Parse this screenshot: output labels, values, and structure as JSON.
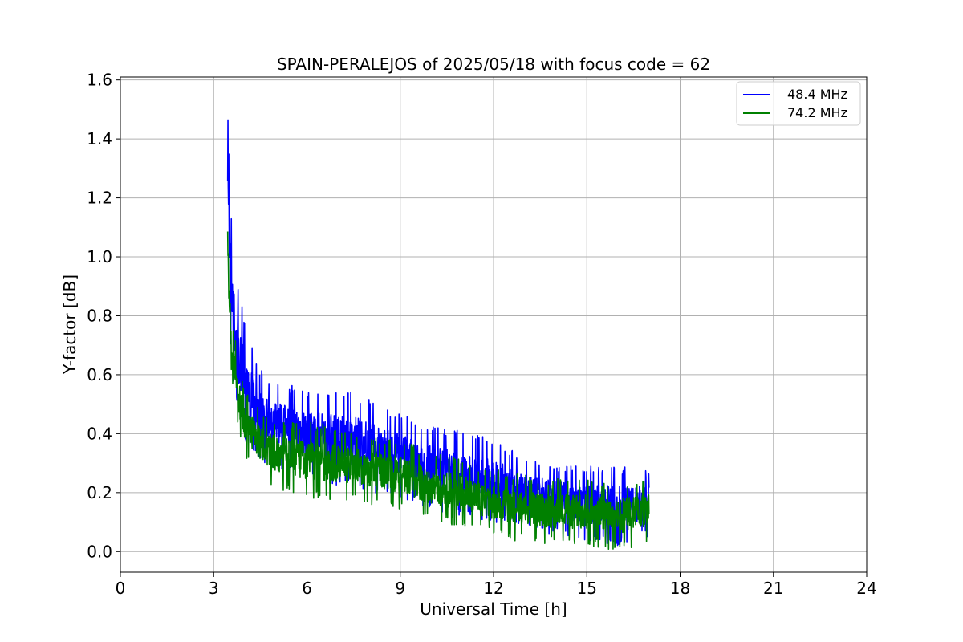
{
  "chart_data": {
    "type": "line",
    "title": "SPAIN-PERALEJOS of 2025/05/18 with focus code = 62",
    "xlabel": "Universal Time [h]",
    "ylabel": "Y-factor [dB]",
    "xlim": [
      0,
      24
    ],
    "ylim": [
      -0.07,
      1.61
    ],
    "xticks": [
      0,
      3,
      6,
      9,
      12,
      15,
      18,
      21,
      24
    ],
    "xtick_labels": [
      "0",
      "3",
      "6",
      "9",
      "12",
      "15",
      "18",
      "21",
      "24"
    ],
    "yticks": [
      0.0,
      0.2,
      0.4,
      0.6,
      0.8,
      1.0,
      1.2,
      1.4,
      1.6
    ],
    "ytick_labels": [
      "0.0",
      "0.2",
      "0.4",
      "0.6",
      "0.8",
      "1.0",
      "1.2",
      "1.4",
      "1.6"
    ],
    "grid": true,
    "legend_position": "top-right",
    "series": [
      {
        "name": "48.4 MHz",
        "color": "#0000ff",
        "envelope": {
          "x": [
            3.45,
            3.5,
            3.6,
            3.8,
            4.0,
            4.5,
            5.0,
            6.0,
            7.0,
            8.0,
            9.0,
            10.0,
            11.0,
            12.0,
            13.0,
            14.0,
            15.0,
            16.0,
            17.0
          ],
          "upper": [
            1.53,
            1.3,
            1.05,
            0.9,
            0.78,
            0.62,
            0.58,
            0.55,
            0.56,
            0.52,
            0.47,
            0.43,
            0.41,
            0.38,
            0.33,
            0.3,
            0.29,
            0.29,
            0.28
          ],
          "lower": [
            0.95,
            0.8,
            0.6,
            0.45,
            0.38,
            0.3,
            0.28,
            0.25,
            0.22,
            0.2,
            0.18,
            0.14,
            0.12,
            0.1,
            0.07,
            0.05,
            0.03,
            0.02,
            0.05
          ]
        }
      },
      {
        "name": "74.2 MHz",
        "color": "#008000",
        "envelope": {
          "x": [
            3.45,
            3.5,
            3.6,
            3.8,
            4.0,
            4.5,
            5.0,
            6.0,
            7.0,
            8.0,
            9.0,
            10.0,
            11.0,
            12.0,
            13.0,
            14.0,
            15.0,
            16.0,
            17.0
          ],
          "upper": [
            1.17,
            1.0,
            0.8,
            0.65,
            0.55,
            0.48,
            0.45,
            0.44,
            0.43,
            0.4,
            0.38,
            0.34,
            0.32,
            0.28,
            0.26,
            0.25,
            0.25,
            0.24,
            0.26
          ],
          "lower": [
            0.9,
            0.75,
            0.55,
            0.4,
            0.32,
            0.25,
            0.21,
            0.18,
            0.17,
            0.16,
            0.14,
            0.1,
            0.08,
            0.05,
            0.03,
            0.02,
            0.02,
            0.0,
            0.03
          ]
        }
      }
    ]
  }
}
